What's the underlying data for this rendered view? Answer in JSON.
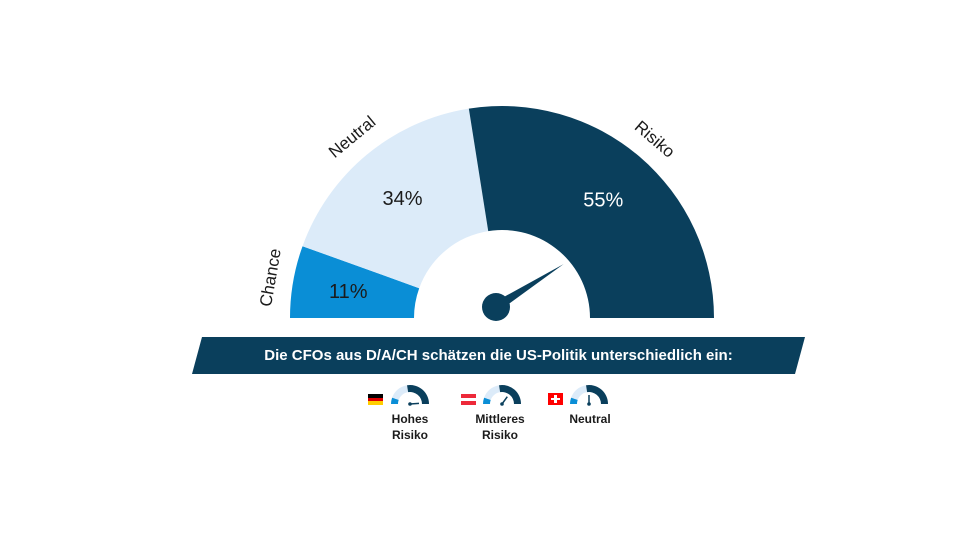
{
  "chart_data": {
    "type": "gauge",
    "segments": [
      {
        "label": "Chance",
        "value": 11,
        "value_label": "11%",
        "color": "#0a8ed6"
      },
      {
        "label": "Neutral",
        "value": 34,
        "value_label": "34%",
        "color": "#dcebf9"
      },
      {
        "label": "Risiko",
        "value": 55,
        "value_label": "55%",
        "color": "#0a3f5c"
      }
    ],
    "needle_color": "#0a3f5c",
    "needle_percent": 82
  },
  "banner": {
    "text": "Die CFOs aus D/A/CH schätzen die US-Politik unterschiedlich ein:",
    "color": "#0a3f5c"
  },
  "legend": [
    {
      "country": "Germany",
      "flag": "de",
      "label": "Hohes\nRisiko",
      "needle_percent": 98
    },
    {
      "country": "Austria",
      "flag": "at",
      "label": "Mittleres\nRisiko",
      "needle_percent": 70
    },
    {
      "country": "Switzerland",
      "flag": "ch",
      "label": "Neutral",
      "needle_percent": 50
    }
  ]
}
